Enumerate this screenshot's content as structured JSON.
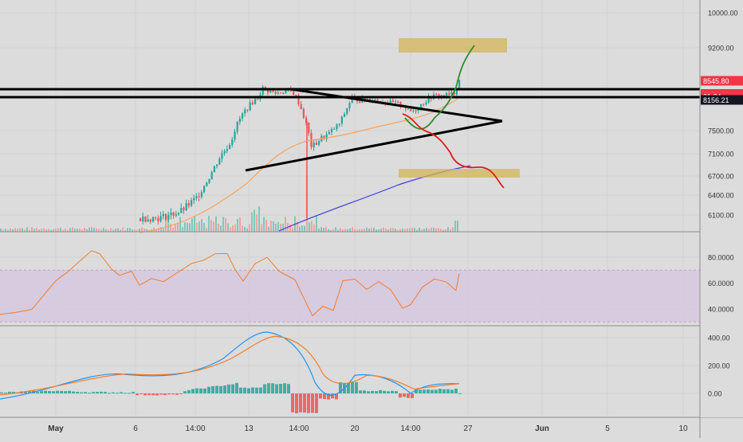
{
  "chart_data": [
    {
      "type": "line",
      "panel": "price",
      "description_source": "candlestick price chart with drawn trendlines and projections",
      "y_axis_ticks": [
        6100,
        6400,
        6700,
        7100,
        7500,
        8283.74,
        9200,
        10000
      ],
      "y_tick_labels": [
        "6100.00",
        "6400.00",
        "6700.00",
        "7100.00",
        "7500.00",
        "8283.74",
        "9200.00",
        "10000.00"
      ],
      "price_badges": [
        {
          "label": "8545.80",
          "value": 8545.8,
          "color": "#f23645"
        },
        {
          "label": "8283.74",
          "value": 8283.74,
          "color": "#131722"
        },
        {
          "label": "8281.39",
          "value": 8281.39,
          "color": "#f23645"
        },
        {
          "label": "21:24",
          "value": 8230,
          "color": "#f23645"
        },
        {
          "label": "8156.21",
          "value": 8156.21,
          "color": "#131722"
        }
      ],
      "x_tick_labels": [
        "May",
        "6",
        "14:00",
        "13",
        "14:00",
        "20",
        "14:00",
        "27",
        "Jun",
        "5",
        "10"
      ],
      "colors": {
        "up": "#26a69a",
        "down": "#ef5350",
        "ema_short": "#f7a35c",
        "ema_long": "#3a3adb",
        "bull_projection": "#2e8b2e",
        "bear_projection": "#e21b1b",
        "target_box": "#d4b55a"
      }
    },
    {
      "type": "line",
      "panel": "rsi",
      "y_tick_labels": [
        "40.0000",
        "60.0000",
        "80.0000"
      ],
      "band": [
        30,
        70
      ],
      "colors": {
        "line": "#f57c2a",
        "band": "#d6c7e0"
      }
    },
    {
      "type": "bar",
      "panel": "macd",
      "y_tick_labels": [
        "0.00",
        "200.00",
        "400.00"
      ],
      "colors": {
        "macd": "#2196f3",
        "signal": "#f57c2a",
        "hist_up": "#26a69a",
        "hist_down": "#ef5350"
      }
    }
  ]
}
